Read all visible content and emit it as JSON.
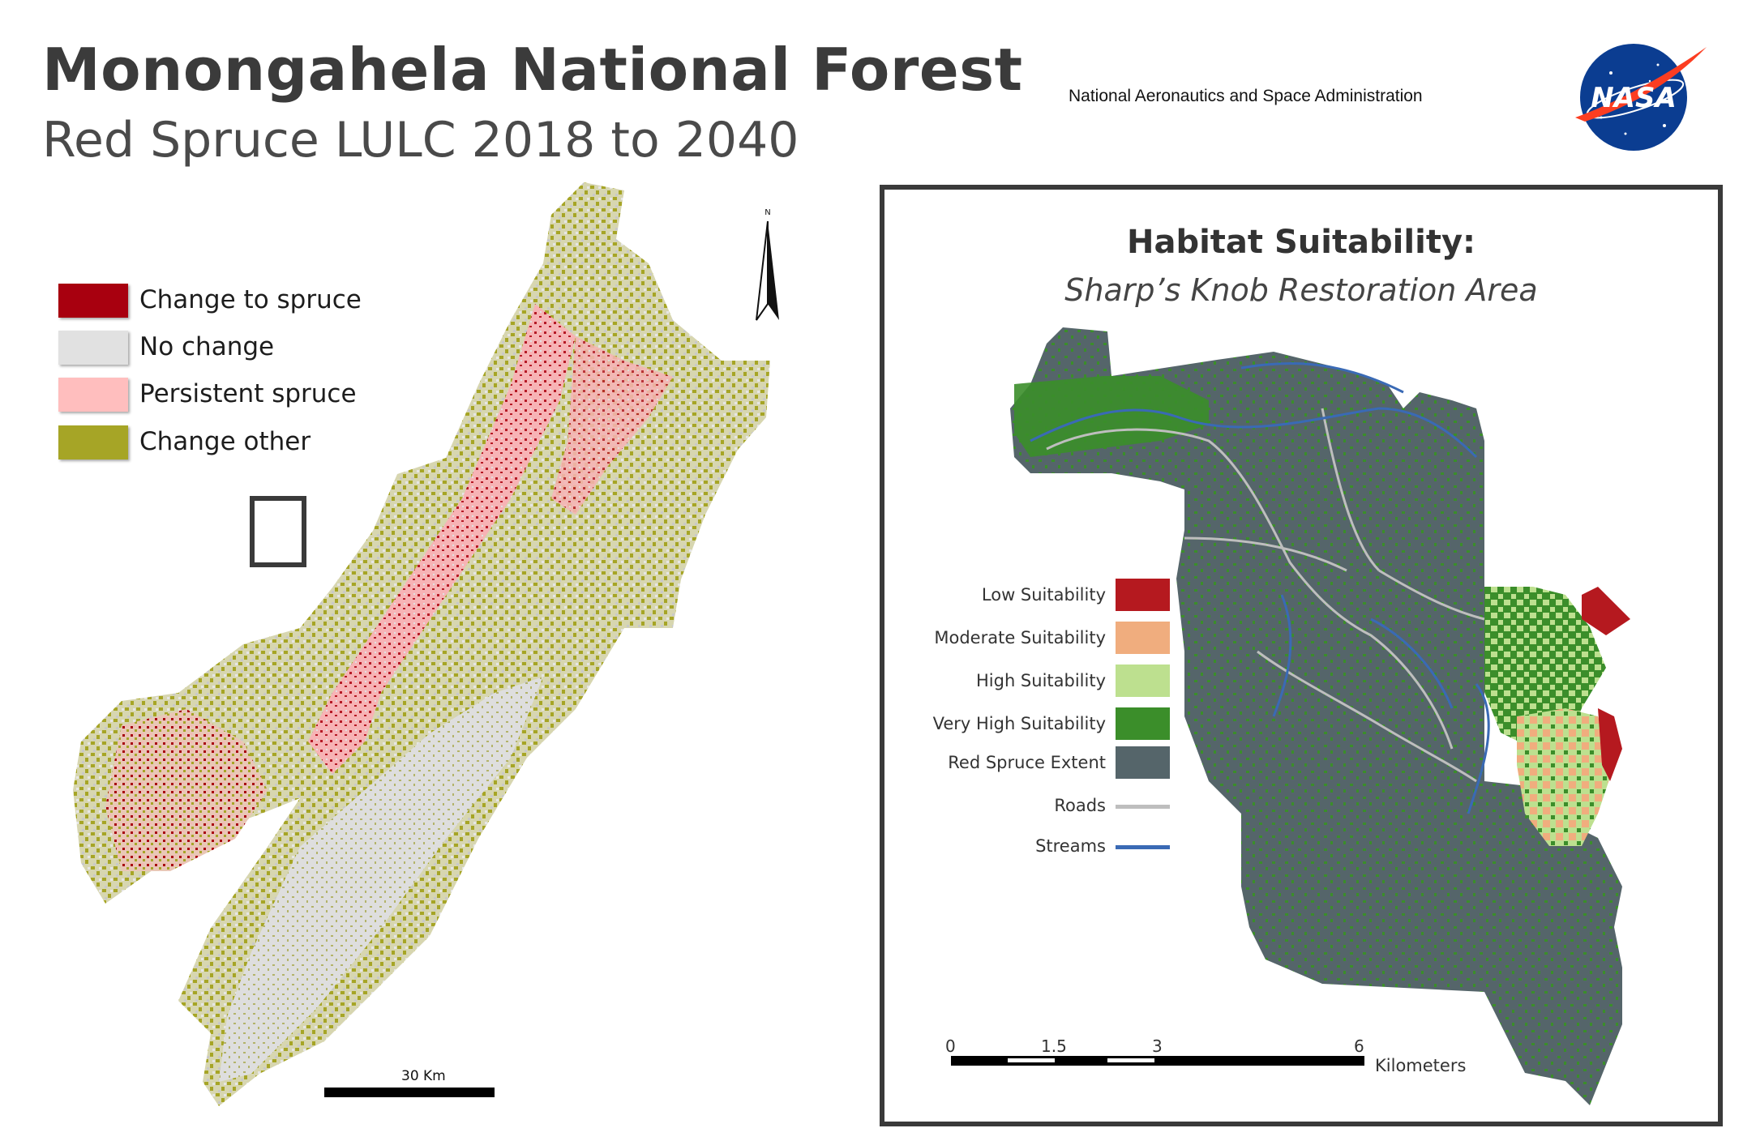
{
  "header": {
    "title": "Monongahela National Forest",
    "subtitle": "Red Spruce LULC 2018 to 2040",
    "agency": "National Aeronautics and Space Administration",
    "logo_text": "NASA"
  },
  "lulc_map": {
    "legend": [
      {
        "label": "Change to spruce",
        "color": "#a8000f"
      },
      {
        "label": "No change",
        "color": "#e1e1e1"
      },
      {
        "label": "Persistent spruce",
        "color": "#ffbebe"
      },
      {
        "label": "Change other",
        "color": "#a6a526"
      }
    ],
    "north_label": "N",
    "scale_label": "30 Km"
  },
  "habitat_map": {
    "title": "Habitat Suitability:",
    "subtitle": "Sharp’s Knob Restoration Area",
    "legend": [
      {
        "label": "Low Suitability",
        "color": "#b5191f",
        "kind": "box"
      },
      {
        "label": "Moderate Suitability",
        "color": "#f0ad7e",
        "kind": "box"
      },
      {
        "label": "High Suitability",
        "color": "#bde08f",
        "kind": "box"
      },
      {
        "label": "Very High Suitability",
        "color": "#3b8e2a",
        "kind": "box"
      },
      {
        "label": "Red Spruce Extent",
        "color": "#55656a",
        "kind": "box"
      },
      {
        "label": "Roads",
        "color": "#bebebe",
        "kind": "line"
      },
      {
        "label": "Streams",
        "color": "#3a6ab5",
        "kind": "line"
      }
    ],
    "scale_ticks": [
      "0",
      "1.5",
      "3",
      "6"
    ],
    "scale_unit": "Kilometers"
  }
}
